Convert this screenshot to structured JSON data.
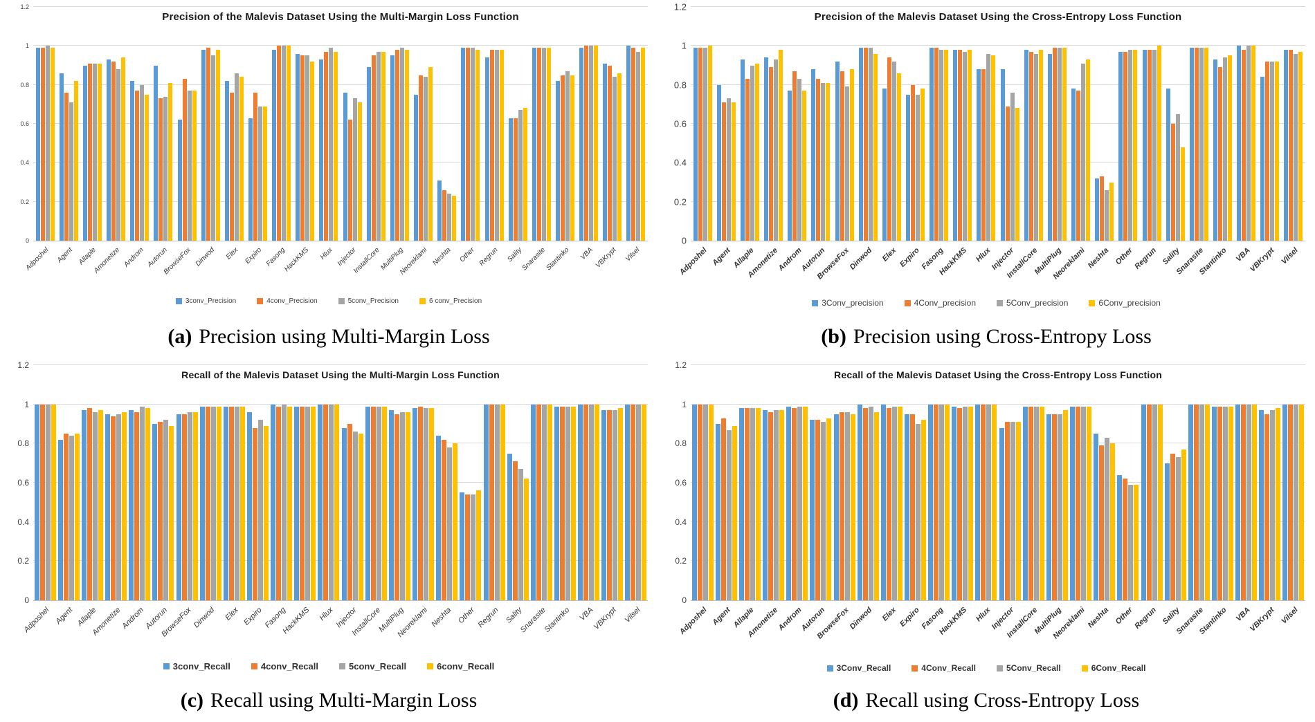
{
  "figure": {
    "captions": [
      {
        "label": "(a)",
        "text": "Precision using Multi-Margin Loss"
      },
      {
        "label": "(b)",
        "text": "Precision using Cross-Entropy Loss"
      },
      {
        "label": "(c)",
        "text": "Recall using Multi-Margin Loss"
      },
      {
        "label": "(d)",
        "text": "Recall using Cross-Entropy Loss"
      }
    ]
  },
  "chart_data": {
    "type": "bar",
    "grid": true,
    "legend_position": "bottom",
    "ymax": 1.2,
    "ylim": [
      0,
      1.2
    ],
    "yticks": [
      "0",
      "0.2",
      "0.4",
      "0.6",
      "0.8",
      "1",
      "1.2"
    ],
    "categories": [
      "Adposhel",
      "Agent",
      "Allaple",
      "Amonetize",
      "Androm",
      "Autorun",
      "BrowseFox",
      "Dinwod",
      "Elex",
      "Expiro",
      "Fasong",
      "HackKMS",
      "Hlux",
      "Injector",
      "InstallCore",
      "MultiPlug",
      "Neoreklami",
      "Neshta",
      "Other",
      "Regrun",
      "Sality",
      "Snarasite",
      "Stantinko",
      "VBA",
      "VBKrypt",
      "Vilsel"
    ],
    "charts": [
      {
        "title": "Precision of the Malevis Dataset Using the Multi-Margin Loss Function",
        "series": [
          {
            "name": "3conv_Precision",
            "color": "#5B9BD5",
            "values": [
              0.99,
              0.86,
              0.9,
              0.93,
              0.82,
              0.9,
              0.62,
              0.98,
              0.82,
              0.63,
              0.98,
              0.96,
              0.93,
              0.76,
              0.89,
              0.95,
              0.75,
              0.31,
              0.99,
              0.94,
              0.63,
              0.99,
              0.82,
              0.99,
              0.91,
              1.0
            ]
          },
          {
            "name": "4conv_Precision",
            "color": "#ED7D31",
            "values": [
              0.99,
              0.76,
              0.91,
              0.92,
              0.77,
              0.73,
              0.83,
              0.99,
              0.76,
              0.76,
              1.0,
              0.95,
              0.97,
              0.62,
              0.95,
              0.98,
              0.85,
              0.26,
              0.99,
              0.98,
              0.63,
              0.99,
              0.85,
              1.0,
              0.9,
              0.99
            ]
          },
          {
            "name": "5conv_Precision",
            "color": "#A5A5A5",
            "values": [
              1.0,
              0.71,
              0.91,
              0.88,
              0.8,
              0.74,
              0.77,
              0.95,
              0.86,
              0.69,
              1.0,
              0.95,
              0.99,
              0.73,
              0.97,
              0.99,
              0.84,
              0.24,
              0.99,
              0.98,
              0.67,
              0.99,
              0.87,
              1.0,
              0.84,
              0.97
            ]
          },
          {
            "name": "6 conv_Precision",
            "color": "#FFC000",
            "values": [
              0.99,
              0.82,
              0.91,
              0.94,
              0.75,
              0.81,
              0.77,
              0.98,
              0.84,
              0.69,
              1.0,
              0.92,
              0.97,
              0.71,
              0.97,
              0.98,
              0.89,
              0.23,
              0.98,
              0.98,
              0.68,
              0.99,
              0.85,
              1.0,
              0.86,
              0.99
            ]
          }
        ]
      },
      {
        "title": "Precision of the Malevis Dataset Using the Cross-Entropy Loss Function",
        "series": [
          {
            "name": "3Conv_precision",
            "color": "#5B9BD5",
            "values": [
              0.99,
              0.8,
              0.93,
              0.94,
              0.77,
              0.88,
              0.92,
              0.99,
              0.78,
              0.75,
              0.99,
              0.98,
              0.88,
              0.88,
              0.98,
              0.96,
              0.78,
              0.32,
              0.97,
              0.98,
              0.78,
              0.99,
              0.93,
              1.0,
              0.84,
              0.98
            ]
          },
          {
            "name": "4Conv_precision",
            "color": "#ED7D31",
            "values": [
              0.99,
              0.71,
              0.83,
              0.89,
              0.87,
              0.83,
              0.87,
              0.99,
              0.94,
              0.8,
              0.99,
              0.98,
              0.88,
              0.69,
              0.97,
              0.99,
              0.77,
              0.33,
              0.97,
              0.98,
              0.6,
              0.99,
              0.89,
              0.98,
              0.92,
              0.98
            ]
          },
          {
            "name": "5Conv_precision",
            "color": "#A5A5A5",
            "values": [
              0.99,
              0.73,
              0.9,
              0.93,
              0.83,
              0.81,
              0.79,
              0.99,
              0.92,
              0.75,
              0.98,
              0.97,
              0.96,
              0.76,
              0.96,
              0.99,
              0.91,
              0.26,
              0.98,
              0.98,
              0.65,
              0.99,
              0.94,
              1.0,
              0.92,
              0.96
            ]
          },
          {
            "name": "6Conv_precision",
            "color": "#FFC000",
            "values": [
              1.0,
              0.71,
              0.91,
              0.98,
              0.77,
              0.81,
              0.88,
              0.96,
              0.86,
              0.78,
              0.98,
              0.98,
              0.95,
              0.68,
              0.98,
              0.99,
              0.93,
              0.3,
              0.98,
              1.0,
              0.48,
              0.99,
              0.95,
              1.0,
              0.92,
              0.97
            ]
          }
        ]
      },
      {
        "title": "Recall of the Malevis Dataset Using the Multi-Margin Loss Function",
        "series": [
          {
            "name": "3conv_Recall",
            "color": "#5B9BD5",
            "values": [
              1.0,
              0.82,
              0.97,
              0.95,
              0.97,
              0.9,
              0.95,
              0.99,
              0.99,
              0.96,
              1.0,
              0.99,
              1.0,
              0.88,
              0.99,
              0.97,
              0.98,
              0.84,
              0.55,
              1.0,
              0.75,
              1.0,
              0.99,
              1.0,
              0.97,
              1.0
            ]
          },
          {
            "name": "4conv_Recall",
            "color": "#ED7D31",
            "values": [
              1.0,
              0.85,
              0.98,
              0.94,
              0.96,
              0.91,
              0.95,
              0.99,
              0.99,
              0.88,
              0.99,
              0.99,
              1.0,
              0.9,
              0.99,
              0.95,
              0.99,
              0.82,
              0.54,
              1.0,
              0.71,
              1.0,
              0.99,
              1.0,
              0.97,
              1.0
            ]
          },
          {
            "name": "5conv_Recall",
            "color": "#A5A5A5",
            "values": [
              1.0,
              0.84,
              0.96,
              0.95,
              0.99,
              0.92,
              0.96,
              0.99,
              0.99,
              0.92,
              1.0,
              0.99,
              1.0,
              0.86,
              0.99,
              0.96,
              0.98,
              0.78,
              0.54,
              1.0,
              0.67,
              1.0,
              0.99,
              1.0,
              0.97,
              1.0
            ]
          },
          {
            "name": "6conv_Recall",
            "color": "#FFC000",
            "values": [
              1.0,
              0.85,
              0.97,
              0.96,
              0.98,
              0.89,
              0.96,
              0.99,
              0.99,
              0.89,
              0.99,
              0.99,
              1.0,
              0.85,
              0.99,
              0.96,
              0.98,
              0.8,
              0.56,
              1.0,
              0.62,
              1.0,
              0.99,
              1.0,
              0.98,
              1.0
            ]
          }
        ]
      },
      {
        "title": "Recall of the Malevis Dataset Using the Cross-Entropy Loss Function",
        "series": [
          {
            "name": "3Conv_Recall",
            "color": "#5B9BD5",
            "values": [
              1.0,
              0.9,
              0.98,
              0.97,
              0.99,
              0.92,
              0.95,
              1.0,
              1.0,
              0.95,
              1.0,
              0.99,
              1.0,
              0.88,
              0.99,
              0.95,
              0.99,
              0.85,
              0.64,
              1.0,
              0.7,
              1.0,
              0.99,
              1.0,
              0.97,
              1.0
            ]
          },
          {
            "name": "4Conv_Recall",
            "color": "#ED7D31",
            "values": [
              1.0,
              0.93,
              0.98,
              0.96,
              0.98,
              0.92,
              0.96,
              0.98,
              0.98,
              0.95,
              1.0,
              0.98,
              1.0,
              0.91,
              0.99,
              0.95,
              0.99,
              0.79,
              0.62,
              1.0,
              0.75,
              1.0,
              0.99,
              1.0,
              0.95,
              1.0
            ]
          },
          {
            "name": "5Conv_Recall",
            "color": "#A5A5A5",
            "values": [
              1.0,
              0.87,
              0.98,
              0.97,
              0.99,
              0.91,
              0.96,
              0.99,
              0.99,
              0.9,
              1.0,
              0.99,
              1.0,
              0.91,
              0.99,
              0.95,
              0.99,
              0.83,
              0.59,
              1.0,
              0.73,
              1.0,
              0.99,
              1.0,
              0.97,
              1.0
            ]
          },
          {
            "name": "6Conv_Recall",
            "color": "#FFC000",
            "values": [
              1.0,
              0.89,
              0.98,
              0.97,
              0.99,
              0.93,
              0.95,
              0.96,
              0.99,
              0.92,
              1.0,
              0.99,
              1.0,
              0.91,
              0.99,
              0.97,
              0.99,
              0.8,
              0.59,
              1.0,
              0.77,
              1.0,
              0.99,
              1.0,
              0.98,
              1.0
            ]
          }
        ]
      }
    ]
  }
}
